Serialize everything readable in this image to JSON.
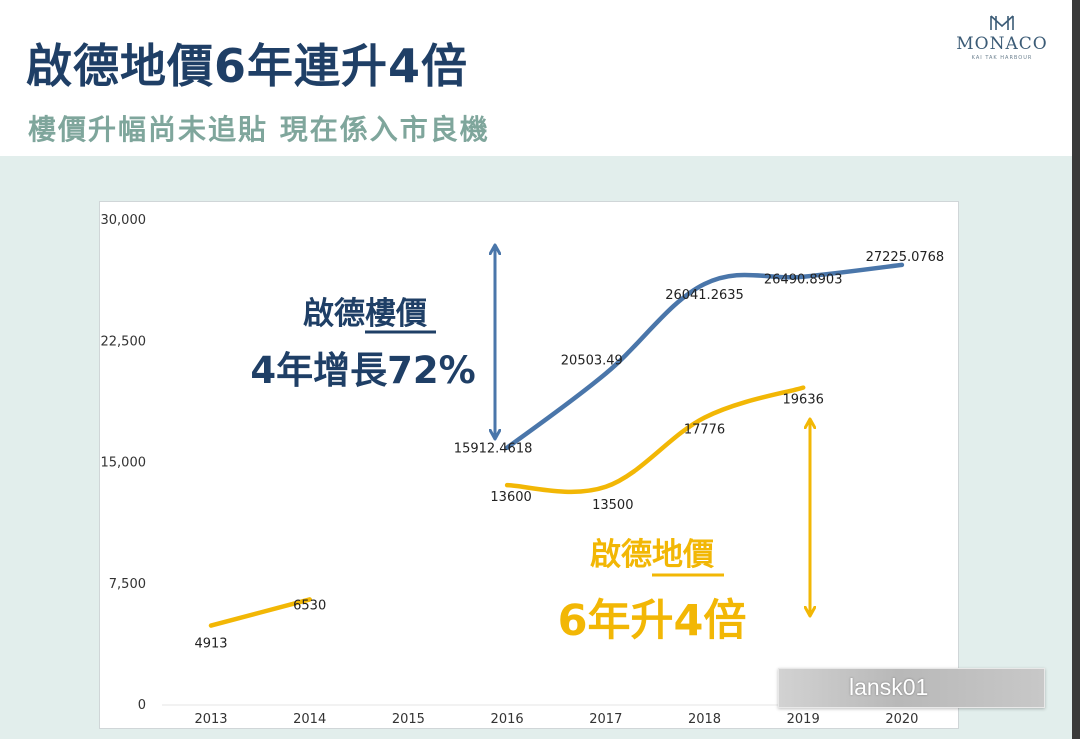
{
  "page": {
    "title": "啟德地價6年連升4倍",
    "subtitle": "樓價升幅尚未追貼 現在係入市良機"
  },
  "logo": {
    "name": "MONACO",
    "tagline": "KAI TAK HARBOUR"
  },
  "watermark": "lansk01",
  "colors": {
    "blue": "#4a76aa",
    "gold": "#f2b705",
    "navy": "#1f3f66",
    "sage": "#7fa69c",
    "band": "#e2eeec"
  },
  "annotations": {
    "blue": {
      "line1": "啟德樓價",
      "line2": "4年增長72%"
    },
    "gold": {
      "line1": "啟德地價",
      "line2": "6年升4倍"
    }
  },
  "chart_data": {
    "type": "line",
    "categories": [
      "2013",
      "2014",
      "2015",
      "2016",
      "2017",
      "2018",
      "2019",
      "2020"
    ],
    "yticks": [
      "0",
      "7,500",
      "15,000",
      "22,500",
      "30,000"
    ],
    "ylim": [
      0,
      30000
    ],
    "grid": false,
    "series": [
      {
        "name": "啟德樓價",
        "color": "#4a76aa",
        "points": [
          {
            "x": "2016",
            "y": 15912.4618,
            "label": "15912.4618"
          },
          {
            "x": "2017",
            "y": 20503.49,
            "label": "20503.49"
          },
          {
            "x": "2018",
            "y": 26041.2635,
            "label": "26041.2635"
          },
          {
            "x": "2019",
            "y": 26490.8903,
            "label": "26490.8903"
          },
          {
            "x": "2020",
            "y": 27225.0768,
            "label": "27225.0768"
          }
        ]
      },
      {
        "name": "啟德地價",
        "color": "#f2b705",
        "points": [
          {
            "x": "2013",
            "y": 4913,
            "label": "4913"
          },
          {
            "x": "2014",
            "y": 6530,
            "label": "6530"
          },
          {
            "x": "2016",
            "y": 13600,
            "label": "13600"
          },
          {
            "x": "2017",
            "y": 13500,
            "label": "13500"
          },
          {
            "x": "2018",
            "y": 17776,
            "label": "17776"
          },
          {
            "x": "2019",
            "y": 19636,
            "label": "19636"
          }
        ]
      }
    ]
  }
}
